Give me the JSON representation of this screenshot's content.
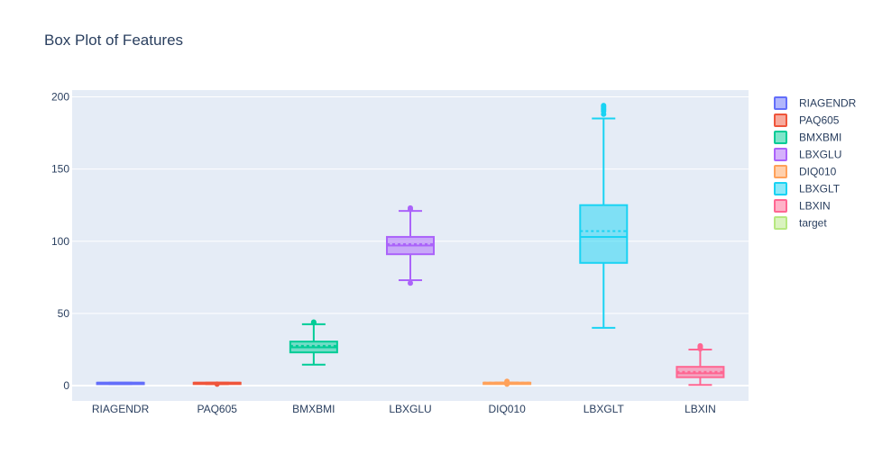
{
  "chart_data": {
    "type": "box",
    "title": "Box Plot of Features",
    "xlabel": "",
    "ylabel": "",
    "categories": [
      "RIAGENDR",
      "PAQ605",
      "BMXBMI",
      "LBXGLU",
      "DIQ010",
      "LBXGLT",
      "LBXIN"
    ],
    "yticks": [
      0,
      50,
      100,
      150,
      200
    ],
    "ylim": [
      -10,
      200
    ],
    "grid": true,
    "legend_position": "right",
    "show_mean": true,
    "series": [
      {
        "name": "RIAGENDR",
        "color": "#636efa",
        "min": 1,
        "q1": 1,
        "median": 2,
        "q3": 2,
        "max": 2,
        "mean": 1.5,
        "outliers": []
      },
      {
        "name": "PAQ605",
        "color": "#ef553b",
        "min": 1,
        "q1": 2,
        "median": 2,
        "q3": 2,
        "max": 2,
        "mean": 1.8,
        "outliers": [
          1
        ]
      },
      {
        "name": "BMXBMI",
        "color": "#00cc96",
        "min": 14.5,
        "q1": 23,
        "median": 26.5,
        "q3": 30.5,
        "max": 42.5,
        "mean": 27.5,
        "outliers": [
          43.5,
          44
        ]
      },
      {
        "name": "LBXGLU",
        "color": "#ab63fa",
        "min": 73,
        "q1": 91,
        "median": 97,
        "q3": 103,
        "max": 121,
        "mean": 98,
        "outliers": [
          71,
          122,
          123
        ]
      },
      {
        "name": "DIQ010",
        "color": "#ffa15a",
        "min": 2,
        "q1": 2,
        "median": 2,
        "q3": 2,
        "max": 2,
        "mean": 2,
        "outliers": [
          1,
          3
        ]
      },
      {
        "name": "LBXGLT",
        "color": "#19d3f3",
        "min": 40,
        "q1": 85,
        "median": 103,
        "q3": 125,
        "max": 185,
        "mean": 107,
        "outliers": [
          188,
          190,
          191,
          192,
          193,
          194
        ]
      },
      {
        "name": "LBXIN",
        "color": "#ff6692",
        "min": 0.5,
        "q1": 5.8,
        "median": 8.5,
        "q3": 13,
        "max": 25,
        "mean": 9.5,
        "outliers": [
          25.5,
          26,
          27,
          27.5
        ]
      },
      {
        "name": "target",
        "color": "#b6e880",
        "min": null,
        "q1": null,
        "median": null,
        "q3": null,
        "max": null,
        "mean": null,
        "outliers": []
      }
    ]
  }
}
